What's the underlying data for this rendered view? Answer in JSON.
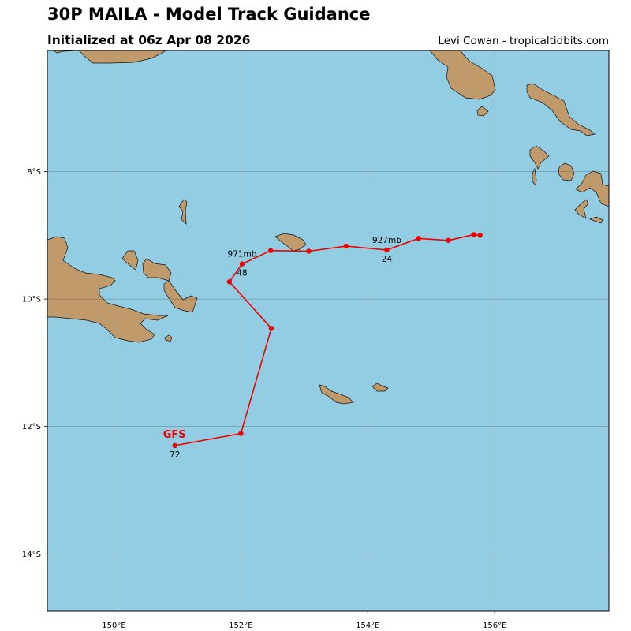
{
  "header": {
    "title": "30P MAILA - Model Track Guidance",
    "subtitle": "Initialized at 06z Apr 08 2026",
    "credit": "Levi Cowan - tropicaltidbits.com"
  },
  "colors": {
    "ocean": "#93cde3",
    "land": "#c19a6b",
    "track": "#ee0000",
    "grid": "#4a4a4a"
  },
  "map": {
    "lon_range": [
      148.95,
      157.8
    ],
    "lat_range": [
      -6.1,
      -14.9
    ],
    "lon_ticks": [
      {
        "value": 150,
        "label": "150°E"
      },
      {
        "value": 152,
        "label": "152°E"
      },
      {
        "value": 154,
        "label": "154°E"
      },
      {
        "value": 156,
        "label": "156°E"
      }
    ],
    "lat_ticks": [
      {
        "value": -8,
        "label": "8°S"
      },
      {
        "value": -10,
        "label": "10°S"
      },
      {
        "value": -12,
        "label": "12°S"
      },
      {
        "value": -14,
        "label": "14°S"
      }
    ]
  },
  "track": {
    "model": "GFS",
    "points": [
      {
        "lon": 155.77,
        "lat": -9.0
      },
      {
        "lon": 155.67,
        "lat": -8.99
      },
      {
        "lon": 155.27,
        "lat": -9.08
      },
      {
        "lon": 154.8,
        "lat": -9.05
      },
      {
        "lon": 154.3,
        "lat": -9.23
      },
      {
        "lon": 153.66,
        "lat": -9.17
      },
      {
        "lon": 153.07,
        "lat": -9.25
      },
      {
        "lon": 152.47,
        "lat": -9.24
      },
      {
        "lon": 152.02,
        "lat": -9.45
      },
      {
        "lon": 151.82,
        "lat": -9.73
      },
      {
        "lon": 152.48,
        "lat": -10.46
      },
      {
        "lon": 152.0,
        "lat": -12.11
      },
      {
        "lon": 150.96,
        "lat": -12.3
      }
    ],
    "annotations": [
      {
        "text": "927mb",
        "lon": 154.3,
        "lat": -9.23,
        "pos": "above"
      },
      {
        "text": "24",
        "lon": 154.3,
        "lat": -9.23,
        "pos": "below"
      },
      {
        "text": "971mb",
        "lon": 152.02,
        "lat": -9.45,
        "pos": "above"
      },
      {
        "text": "48",
        "lon": 152.02,
        "lat": -9.45,
        "pos": "below"
      },
      {
        "text": "72",
        "lon": 150.96,
        "lat": -12.3,
        "pos": "below"
      }
    ],
    "model_label": {
      "text": "GFS",
      "lon": 150.96,
      "lat": -12.3
    }
  }
}
